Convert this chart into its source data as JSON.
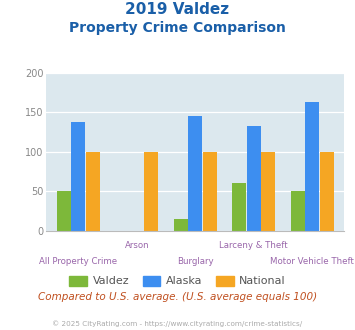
{
  "title_line1": "2019 Valdez",
  "title_line2": "Property Crime Comparison",
  "categories": [
    "All Property Crime",
    "Arson",
    "Burglary",
    "Larceny & Theft",
    "Motor Vehicle Theft"
  ],
  "valdez": [
    51,
    0,
    15,
    60,
    50
  ],
  "alaska": [
    138,
    0,
    145,
    133,
    163
  ],
  "national": [
    100,
    100,
    100,
    100,
    100
  ],
  "color_valdez": "#7db83a",
  "color_alaska": "#3d8ef0",
  "color_national": "#f5a623",
  "ylim": [
    0,
    200
  ],
  "yticks": [
    0,
    50,
    100,
    150,
    200
  ],
  "bg_color": "#dce8ee",
  "legend_labels": [
    "Valdez",
    "Alaska",
    "National"
  ],
  "footer_text": "Compared to U.S. average. (U.S. average equals 100)",
  "copyright_text": "© 2025 CityRating.com - https://www.cityrating.com/crime-statistics/",
  "title_color": "#1a5fa8",
  "footer_color": "#c05020",
  "copyright_color": "#aaaaaa",
  "xlabel_color": "#9966aa",
  "tick_color": "#888888"
}
